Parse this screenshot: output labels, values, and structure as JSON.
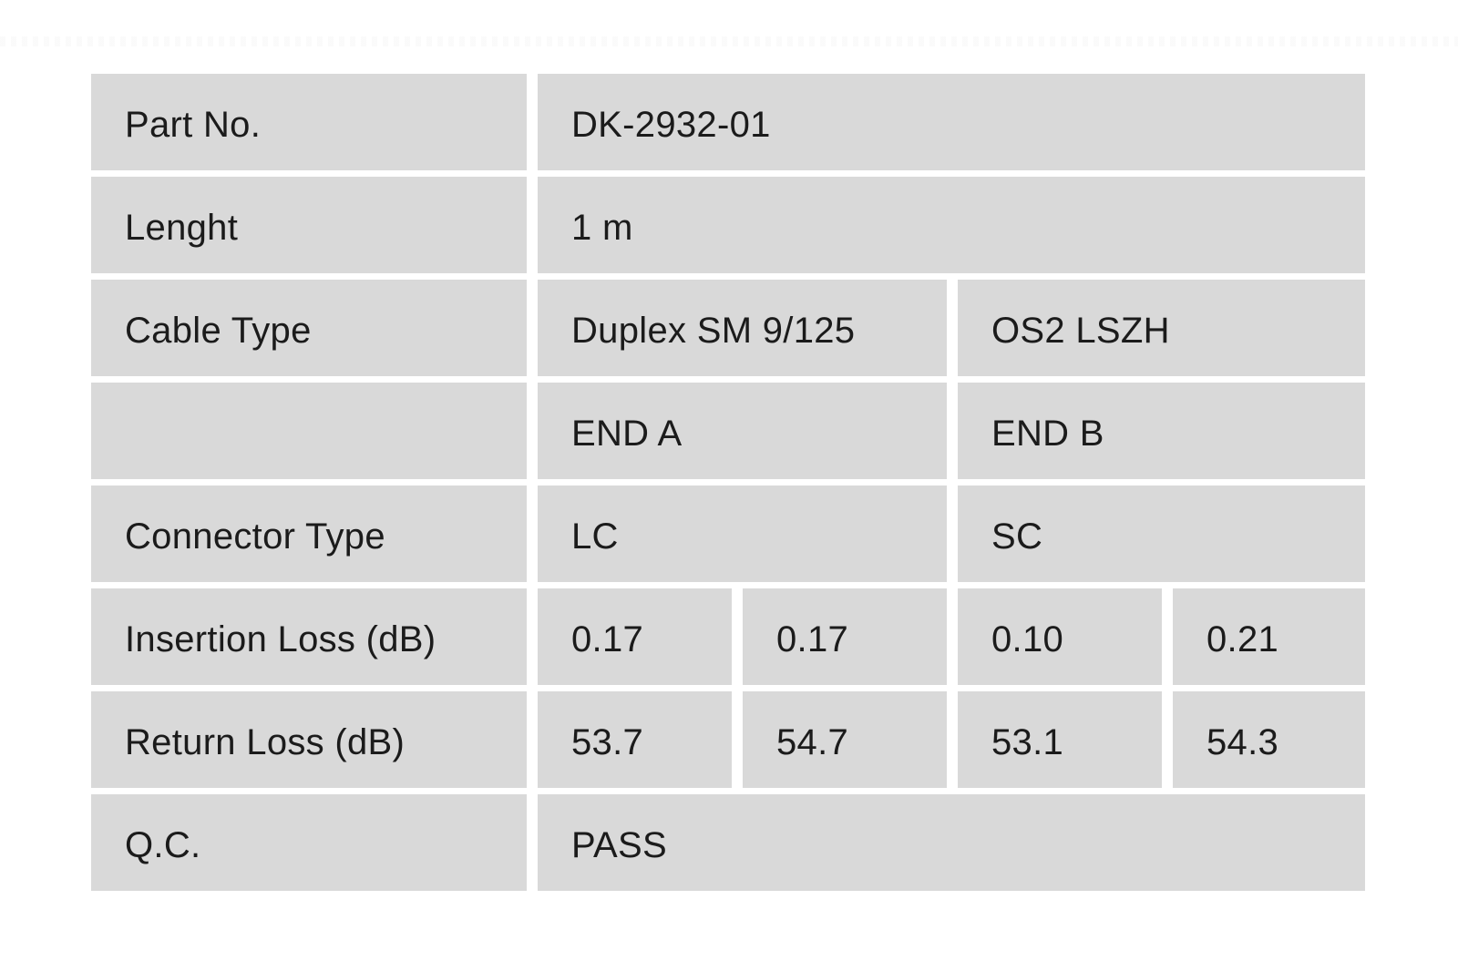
{
  "table": {
    "rows": [
      {
        "label": "Part No.",
        "value": "DK-2932-01"
      },
      {
        "label": "Lenght",
        "value": "1 m"
      },
      {
        "label": "Cable Type",
        "value_a": "Duplex SM 9/125",
        "value_b": "OS2 LSZH"
      },
      {
        "label": "",
        "value_a": "END A",
        "value_b": "END B"
      },
      {
        "label": "Connector Type",
        "value_a": "LC",
        "value_b": "SC"
      },
      {
        "label": "Insertion Loss (dB)",
        "values": [
          "0.17",
          "0.17",
          "0.10",
          "0.21"
        ]
      },
      {
        "label": "Return Loss (dB)",
        "values": [
          "53.7",
          "54.7",
          "53.1",
          "54.3"
        ]
      },
      {
        "label": "Q.C.",
        "value": "PASS"
      }
    ],
    "colors": {
      "cell_background": "#d9d9d9",
      "text": "#1b1b1b",
      "page_background": "#ffffff"
    }
  }
}
